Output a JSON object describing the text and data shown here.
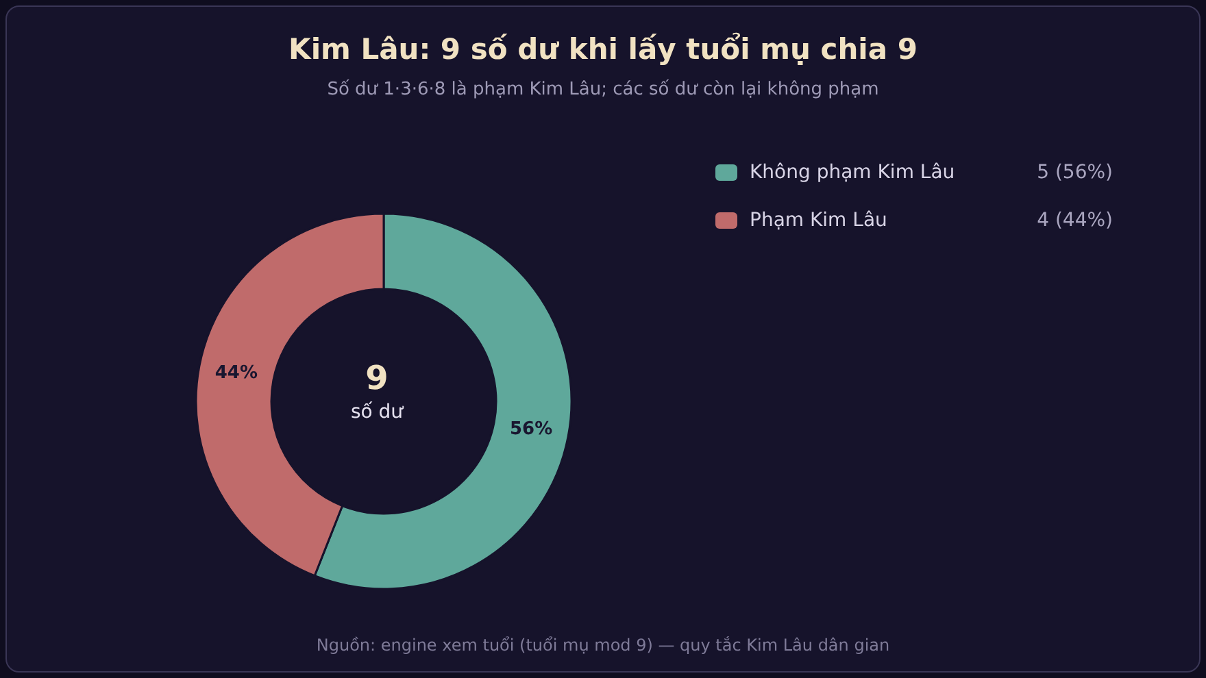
{
  "chart_data": {
    "type": "donut",
    "title": "Kim Lâu: 9 số dư khi lấy tuổi mụ chia 9",
    "subtitle": "Số dư 1·3·6·8 là phạm Kim Lâu; các số dư còn lại không phạm",
    "categories": [
      "Không phạm Kim Lâu",
      "Phạm Kim Lâu"
    ],
    "values": [
      56,
      44
    ],
    "colors": [
      "#5fa89b",
      "#c06b6b"
    ],
    "value_labels": [
      "56%",
      "44%"
    ],
    "legend": "top right",
    "annotations": [
      "9",
      "số dư",
      "5 (56%)",
      "4 (44%)",
      "Nguồn: engine xem tuổi (tuổi mụ mod 9) — quy tắc Kim Lâu dân gian"
    ]
  }
}
